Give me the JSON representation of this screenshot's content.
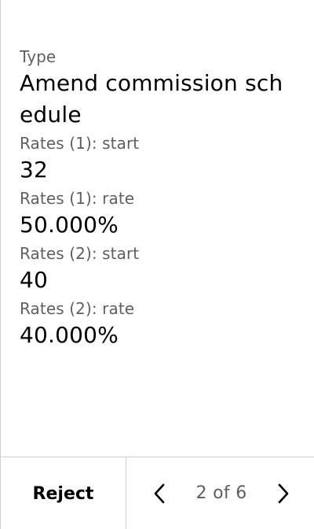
{
  "fields": [
    {
      "label": "Type",
      "value": "Amend commission schedule"
    },
    {
      "label": "Rates (1): start",
      "value": "32"
    },
    {
      "label": "Rates (1): rate",
      "value": "50.000%"
    },
    {
      "label": "Rates (2): start",
      "value": "40"
    },
    {
      "label": "Rates (2): rate",
      "value": "40.000%"
    }
  ],
  "footer": {
    "reject_label": "Reject",
    "pagination": "2 of 6",
    "prev_icon": "chevron-left-icon",
    "next_icon": "chevron-right-icon"
  }
}
